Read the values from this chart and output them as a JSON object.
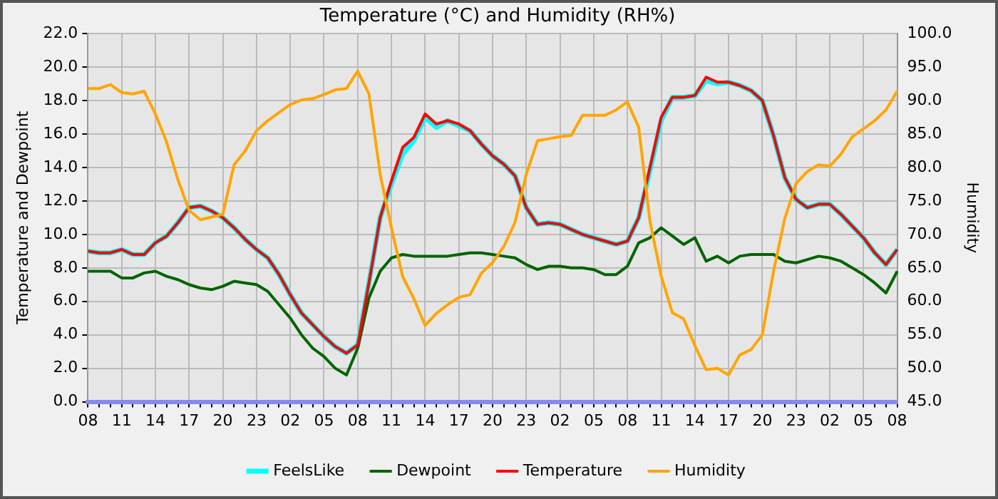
{
  "chart_data": {
    "type": "line",
    "title": "Temperature (°C) and Humidity (RH%)",
    "ylabel": "Temperature and Dewpoint",
    "y2label": "Humidity",
    "categories": [
      "08",
      null,
      null,
      "11",
      null,
      null,
      "14",
      null,
      null,
      "17",
      null,
      null,
      "20",
      null,
      null,
      "23",
      null,
      null,
      "02",
      null,
      null,
      "05",
      null,
      null,
      "08",
      null,
      null,
      "11",
      null,
      null,
      "14",
      null,
      null,
      "17",
      null,
      null,
      "20",
      null,
      null,
      "23",
      null,
      null,
      "02",
      null,
      null,
      "05",
      null,
      null,
      "08",
      null,
      null,
      "11",
      null,
      null,
      "14",
      null,
      null,
      "17",
      null,
      null,
      "20",
      null,
      null,
      "23",
      null,
      null,
      "02",
      null,
      null,
      "05",
      null,
      null,
      "08"
    ],
    "ylim": [
      0,
      22
    ],
    "yticks": [
      {
        "value": 0,
        "label": "0.0"
      },
      {
        "value": 2,
        "label": "2.0"
      },
      {
        "value": 4,
        "label": "4.0"
      },
      {
        "value": 6,
        "label": "6.0"
      },
      {
        "value": 8,
        "label": "8.0"
      },
      {
        "value": 10,
        "label": "10.0"
      },
      {
        "value": 12,
        "label": "12.0"
      },
      {
        "value": 14,
        "label": "14.0"
      },
      {
        "value": 16,
        "label": "16.0"
      },
      {
        "value": 18,
        "label": "18.0"
      },
      {
        "value": 20,
        "label": "20.0"
      },
      {
        "value": 22,
        "label": "22.0"
      }
    ],
    "y2lim": [
      45,
      100
    ],
    "y2ticks": [
      {
        "value": 45,
        "label": "45.0"
      },
      {
        "value": 50,
        "label": "50.0"
      },
      {
        "value": 55,
        "label": "55.0"
      },
      {
        "value": 60,
        "label": "60.0"
      },
      {
        "value": 65,
        "label": "65.0"
      },
      {
        "value": 70,
        "label": "70.0"
      },
      {
        "value": 75,
        "label": "75.0"
      },
      {
        "value": 80,
        "label": "80.0"
      },
      {
        "value": 85,
        "label": "85.0"
      },
      {
        "value": 90,
        "label": "90.0"
      },
      {
        "value": 95,
        "label": "95.0"
      },
      {
        "value": 100,
        "label": "100.0"
      }
    ],
    "grid": true,
    "legend": "bottom",
    "marker": "none",
    "line_style": "solid",
    "series": [
      {
        "name": "FeelsLike",
        "color": "#00ffff",
        "values": [
          9.0,
          8.9,
          8.9,
          9.1,
          8.8,
          8.8,
          9.5,
          9.9,
          10.7,
          11.6,
          11.7,
          11.4,
          11.0,
          10.4,
          9.7,
          9.1,
          8.6,
          7.6,
          6.4,
          5.3,
          4.6,
          3.9,
          3.3,
          2.9,
          3.4,
          7.1,
          11.0,
          13.0,
          14.8,
          15.6,
          17.0,
          16.4,
          16.8,
          16.5,
          16.2,
          15.4,
          14.7,
          14.2,
          13.5,
          11.6,
          10.6,
          10.7,
          10.6,
          10.3,
          10.0,
          9.8,
          9.6,
          9.4,
          9.6,
          11.0,
          13.8,
          16.8,
          18.2,
          18.2,
          18.3,
          19.2,
          19.0,
          19.1,
          18.9,
          18.6,
          18.0,
          15.9,
          13.4,
          12.1,
          11.6,
          11.8,
          11.8,
          11.2,
          10.5,
          9.8,
          8.9,
          8.2,
          9.1
        ]
      },
      {
        "name": "Dewpoint",
        "color": "#006400",
        "values": [
          7.8,
          7.8,
          7.8,
          7.4,
          7.4,
          7.7,
          7.8,
          7.5,
          7.3,
          7.0,
          6.8,
          6.7,
          6.9,
          7.2,
          7.1,
          7.0,
          6.6,
          5.8,
          5.0,
          4.0,
          3.2,
          2.7,
          2.0,
          1.6,
          3.2,
          6.2,
          7.8,
          8.6,
          8.8,
          8.7,
          8.7,
          8.7,
          8.7,
          8.8,
          8.9,
          8.9,
          8.8,
          8.7,
          8.6,
          8.2,
          7.9,
          8.1,
          8.1,
          8.0,
          8.0,
          7.9,
          7.6,
          7.6,
          8.1,
          9.5,
          9.8,
          10.4,
          9.9,
          9.4,
          9.8,
          8.4,
          8.7,
          8.3,
          8.7,
          8.8,
          8.8,
          8.8,
          8.4,
          8.3,
          8.5,
          8.7,
          8.6,
          8.4,
          8.0,
          7.6,
          7.1,
          6.5,
          7.8
        ]
      },
      {
        "name": "Temperature",
        "color": "#ff0000",
        "values": [
          9.0,
          8.9,
          8.9,
          9.1,
          8.8,
          8.8,
          9.5,
          9.9,
          10.7,
          11.6,
          11.7,
          11.4,
          11.0,
          10.4,
          9.7,
          9.1,
          8.6,
          7.6,
          6.4,
          5.3,
          4.6,
          3.9,
          3.3,
          2.9,
          3.4,
          7.1,
          11.0,
          13.2,
          15.2,
          15.8,
          17.2,
          16.6,
          16.8,
          16.6,
          16.2,
          15.4,
          14.7,
          14.2,
          13.5,
          11.6,
          10.6,
          10.7,
          10.6,
          10.3,
          10.0,
          9.8,
          9.6,
          9.4,
          9.6,
          11.0,
          14.0,
          17.0,
          18.2,
          18.2,
          18.3,
          19.4,
          19.1,
          19.1,
          18.9,
          18.6,
          18.0,
          15.9,
          13.4,
          12.1,
          11.6,
          11.8,
          11.8,
          11.2,
          10.5,
          9.8,
          8.9,
          8.2,
          9.1
        ]
      },
      {
        "name": "Humidity",
        "color": "#ffa500",
        "axis": "y2",
        "values": [
          91.8,
          91.8,
          92.4,
          91.2,
          91.0,
          91.4,
          88.0,
          83.8,
          78.2,
          73.6,
          72.2,
          72.6,
          73.0,
          80.4,
          82.5,
          85.5,
          87.0,
          88.2,
          89.4,
          90.1,
          90.3,
          90.9,
          91.6,
          91.8,
          94.4,
          91.0,
          79.0,
          71.0,
          63.7,
          60.4,
          56.4,
          58.2,
          59.5,
          60.6,
          61.0,
          64.2,
          65.8,
          68.2,
          71.8,
          79.0,
          84.0,
          84.3,
          84.6,
          84.8,
          87.8,
          87.8,
          87.8,
          88.6,
          89.8,
          86.0,
          72.0,
          63.8,
          58.3,
          57.4,
          53.4,
          49.8,
          50.0,
          49.0,
          52.0,
          52.8,
          55.0,
          64.5,
          72.4,
          77.6,
          79.4,
          80.4,
          80.2,
          82.0,
          84.6,
          85.8,
          87.0,
          88.6,
          91.4
        ]
      }
    ]
  }
}
